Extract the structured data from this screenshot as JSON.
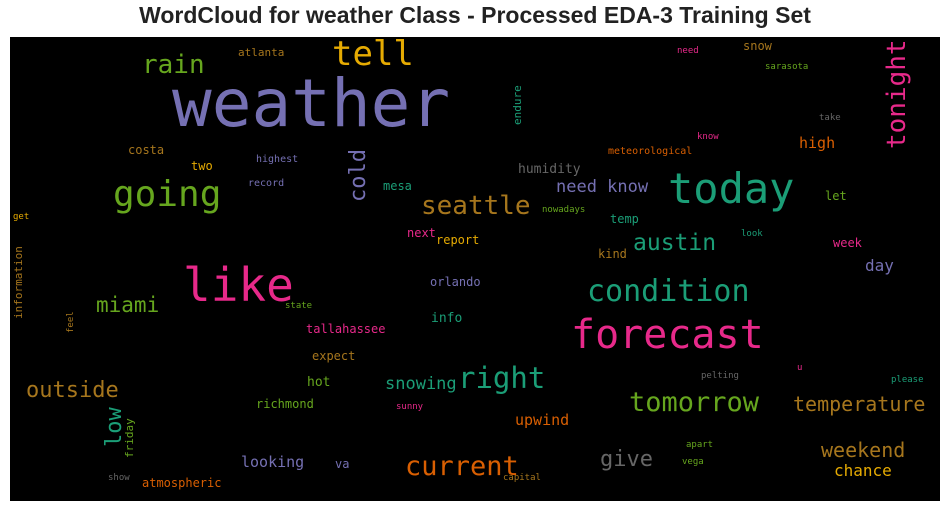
{
  "title": "WordCloud for weather Class - Processed EDA-3 Training Set",
  "palette": {
    "purple": "#7570b3",
    "green": "#1b9e77",
    "magenta": "#e7298a",
    "orange": "#d95f02",
    "olive": "#66a61e",
    "gold": "#e6ab02",
    "brown": "#a6761d",
    "gray": "#666666"
  },
  "words": {
    "weather": {
      "text": "weather",
      "color": "#7570b3"
    },
    "tell": {
      "text": "tell",
      "color": "#e6ab02"
    },
    "rain": {
      "text": "rain",
      "color": "#66a61e"
    },
    "atlanta": {
      "text": "atlanta",
      "color": "#a6761d"
    },
    "need_top": {
      "text": "need",
      "color": "#e7298a"
    },
    "snow": {
      "text": "snow",
      "color": "#a6761d"
    },
    "sarasota": {
      "text": "sarasota",
      "color": "#66a61e"
    },
    "tonight": {
      "text": "tonight",
      "color": "#e7298a"
    },
    "endure": {
      "text": "endure",
      "color": "#1b9e77"
    },
    "take": {
      "text": "take",
      "color": "#666666"
    },
    "know_small": {
      "text": "know",
      "color": "#e7298a"
    },
    "costa": {
      "text": "costa",
      "color": "#a6761d"
    },
    "highest": {
      "text": "highest",
      "color": "#7570b3"
    },
    "two": {
      "text": "two",
      "color": "#e6ab02"
    },
    "cold": {
      "text": "cold",
      "color": "#7570b3"
    },
    "humidity": {
      "text": "humidity",
      "color": "#666666"
    },
    "meteorological": {
      "text": "meteorological",
      "color": "#d95f02"
    },
    "high": {
      "text": "high",
      "color": "#d95f02"
    },
    "going": {
      "text": "going",
      "color": "#66a61e"
    },
    "record": {
      "text": "record",
      "color": "#7570b3"
    },
    "mesa": {
      "text": "mesa",
      "color": "#1b9e77"
    },
    "need_know": {
      "text": "need know",
      "color": "#7570b3"
    },
    "today": {
      "text": "today",
      "color": "#1b9e77"
    },
    "let": {
      "text": "let",
      "color": "#66a61e"
    },
    "seattle": {
      "text": "seattle",
      "color": "#a6761d"
    },
    "nowadays": {
      "text": "nowadays",
      "color": "#66a61e"
    },
    "get": {
      "text": "get",
      "color": "#e6ab02"
    },
    "temp": {
      "text": "temp",
      "color": "#1b9e77"
    },
    "next": {
      "text": "next",
      "color": "#e7298a"
    },
    "report": {
      "text": "report",
      "color": "#e6ab02"
    },
    "austin": {
      "text": "austin",
      "color": "#1b9e77"
    },
    "look": {
      "text": "look",
      "color": "#1b9e77"
    },
    "week": {
      "text": "week",
      "color": "#e7298a"
    },
    "kind": {
      "text": "kind",
      "color": "#a6761d"
    },
    "day": {
      "text": "day",
      "color": "#7570b3"
    },
    "information": {
      "text": "information",
      "color": "#a6761d"
    },
    "like": {
      "text": "like",
      "color": "#e7298a"
    },
    "orlando": {
      "text": "orlando",
      "color": "#7570b3"
    },
    "condition": {
      "text": "condition",
      "color": "#1b9e77"
    },
    "miami": {
      "text": "miami",
      "color": "#66a61e"
    },
    "state": {
      "text": "state",
      "color": "#66a61e"
    },
    "feel": {
      "text": "feel",
      "color": "#a6761d"
    },
    "info": {
      "text": "info",
      "color": "#1b9e77"
    },
    "forecast": {
      "text": "forecast",
      "color": "#e7298a"
    },
    "tallahassee": {
      "text": "tallahassee",
      "color": "#e7298a"
    },
    "expect": {
      "text": "expect",
      "color": "#a6761d"
    },
    "u": {
      "text": "u",
      "color": "#e7298a"
    },
    "pelting": {
      "text": "pelting",
      "color": "#666666"
    },
    "please": {
      "text": "please",
      "color": "#1b9e77"
    },
    "outside": {
      "text": "outside",
      "color": "#a6761d"
    },
    "hot": {
      "text": "hot",
      "color": "#66a61e"
    },
    "snowing": {
      "text": "snowing",
      "color": "#1b9e77"
    },
    "right": {
      "text": "right",
      "color": "#1b9e77"
    },
    "low": {
      "text": "low",
      "color": "#1b9e77"
    },
    "richmond": {
      "text": "richmond",
      "color": "#66a61e"
    },
    "sunny": {
      "text": "sunny",
      "color": "#e7298a"
    },
    "tomorrow": {
      "text": "tomorrow",
      "color": "#66a61e"
    },
    "temperature": {
      "text": "temperature",
      "color": "#a6761d"
    },
    "friday": {
      "text": "friday",
      "color": "#66a61e"
    },
    "upwind": {
      "text": "upwind",
      "color": "#d95f02"
    },
    "apart": {
      "text": "apart",
      "color": "#66a61e"
    },
    "weekend": {
      "text": "weekend",
      "color": "#a6761d"
    },
    "looking": {
      "text": "looking",
      "color": "#7570b3"
    },
    "va": {
      "text": "va",
      "color": "#7570b3"
    },
    "current": {
      "text": "current",
      "color": "#d95f02"
    },
    "give": {
      "text": "give",
      "color": "#666666"
    },
    "vega": {
      "text": "vega",
      "color": "#66a61e"
    },
    "chance": {
      "text": "chance",
      "color": "#e6ab02"
    },
    "show": {
      "text": "show",
      "color": "#666666"
    },
    "atmospheric": {
      "text": "atmospheric",
      "color": "#d95f02"
    },
    "capital": {
      "text": "capital",
      "color": "#a6761d"
    }
  }
}
